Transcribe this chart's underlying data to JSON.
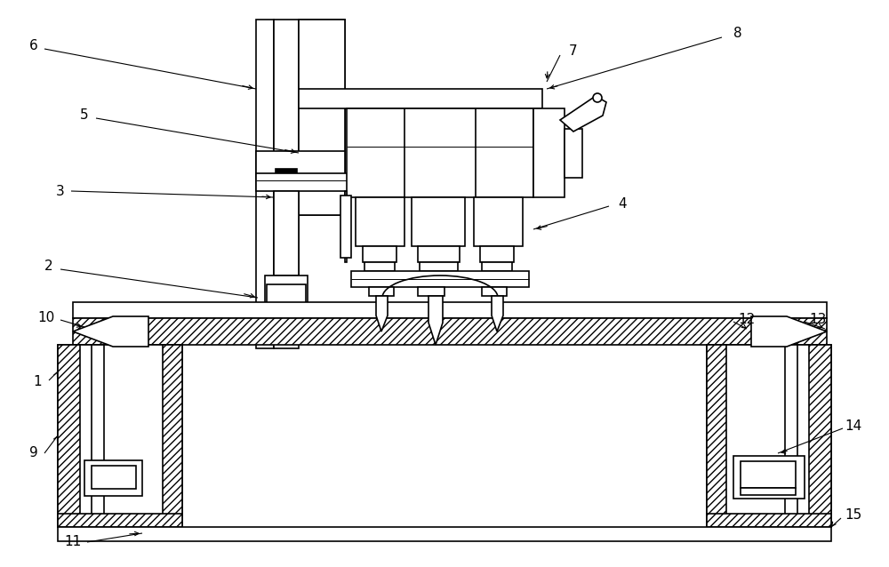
{
  "bg": "#ffffff",
  "lw": 1.2,
  "figsize": [
    10.0,
    6.38
  ],
  "dpi": 100
}
